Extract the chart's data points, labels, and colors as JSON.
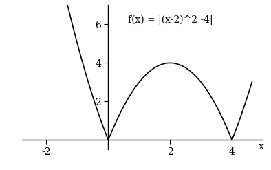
{
  "title": "f(x) = |(x-2)^2 -4|",
  "xlabel": "x",
  "xlim": [
    -2.8,
    5.0
  ],
  "ylim": [
    -0.5,
    7.0
  ],
  "xticks": [
    -2,
    2,
    4
  ],
  "yticks": [
    2,
    4,
    6
  ],
  "line_color": "#000000",
  "background_color": "#ffffff",
  "axis_color": "#000000",
  "font_family": "DejaVu Serif",
  "title_fontsize": 10,
  "tick_fontsize": 10,
  "line_width": 1.2,
  "x_plot_min": -2.6,
  "x_plot_max": 4.65
}
